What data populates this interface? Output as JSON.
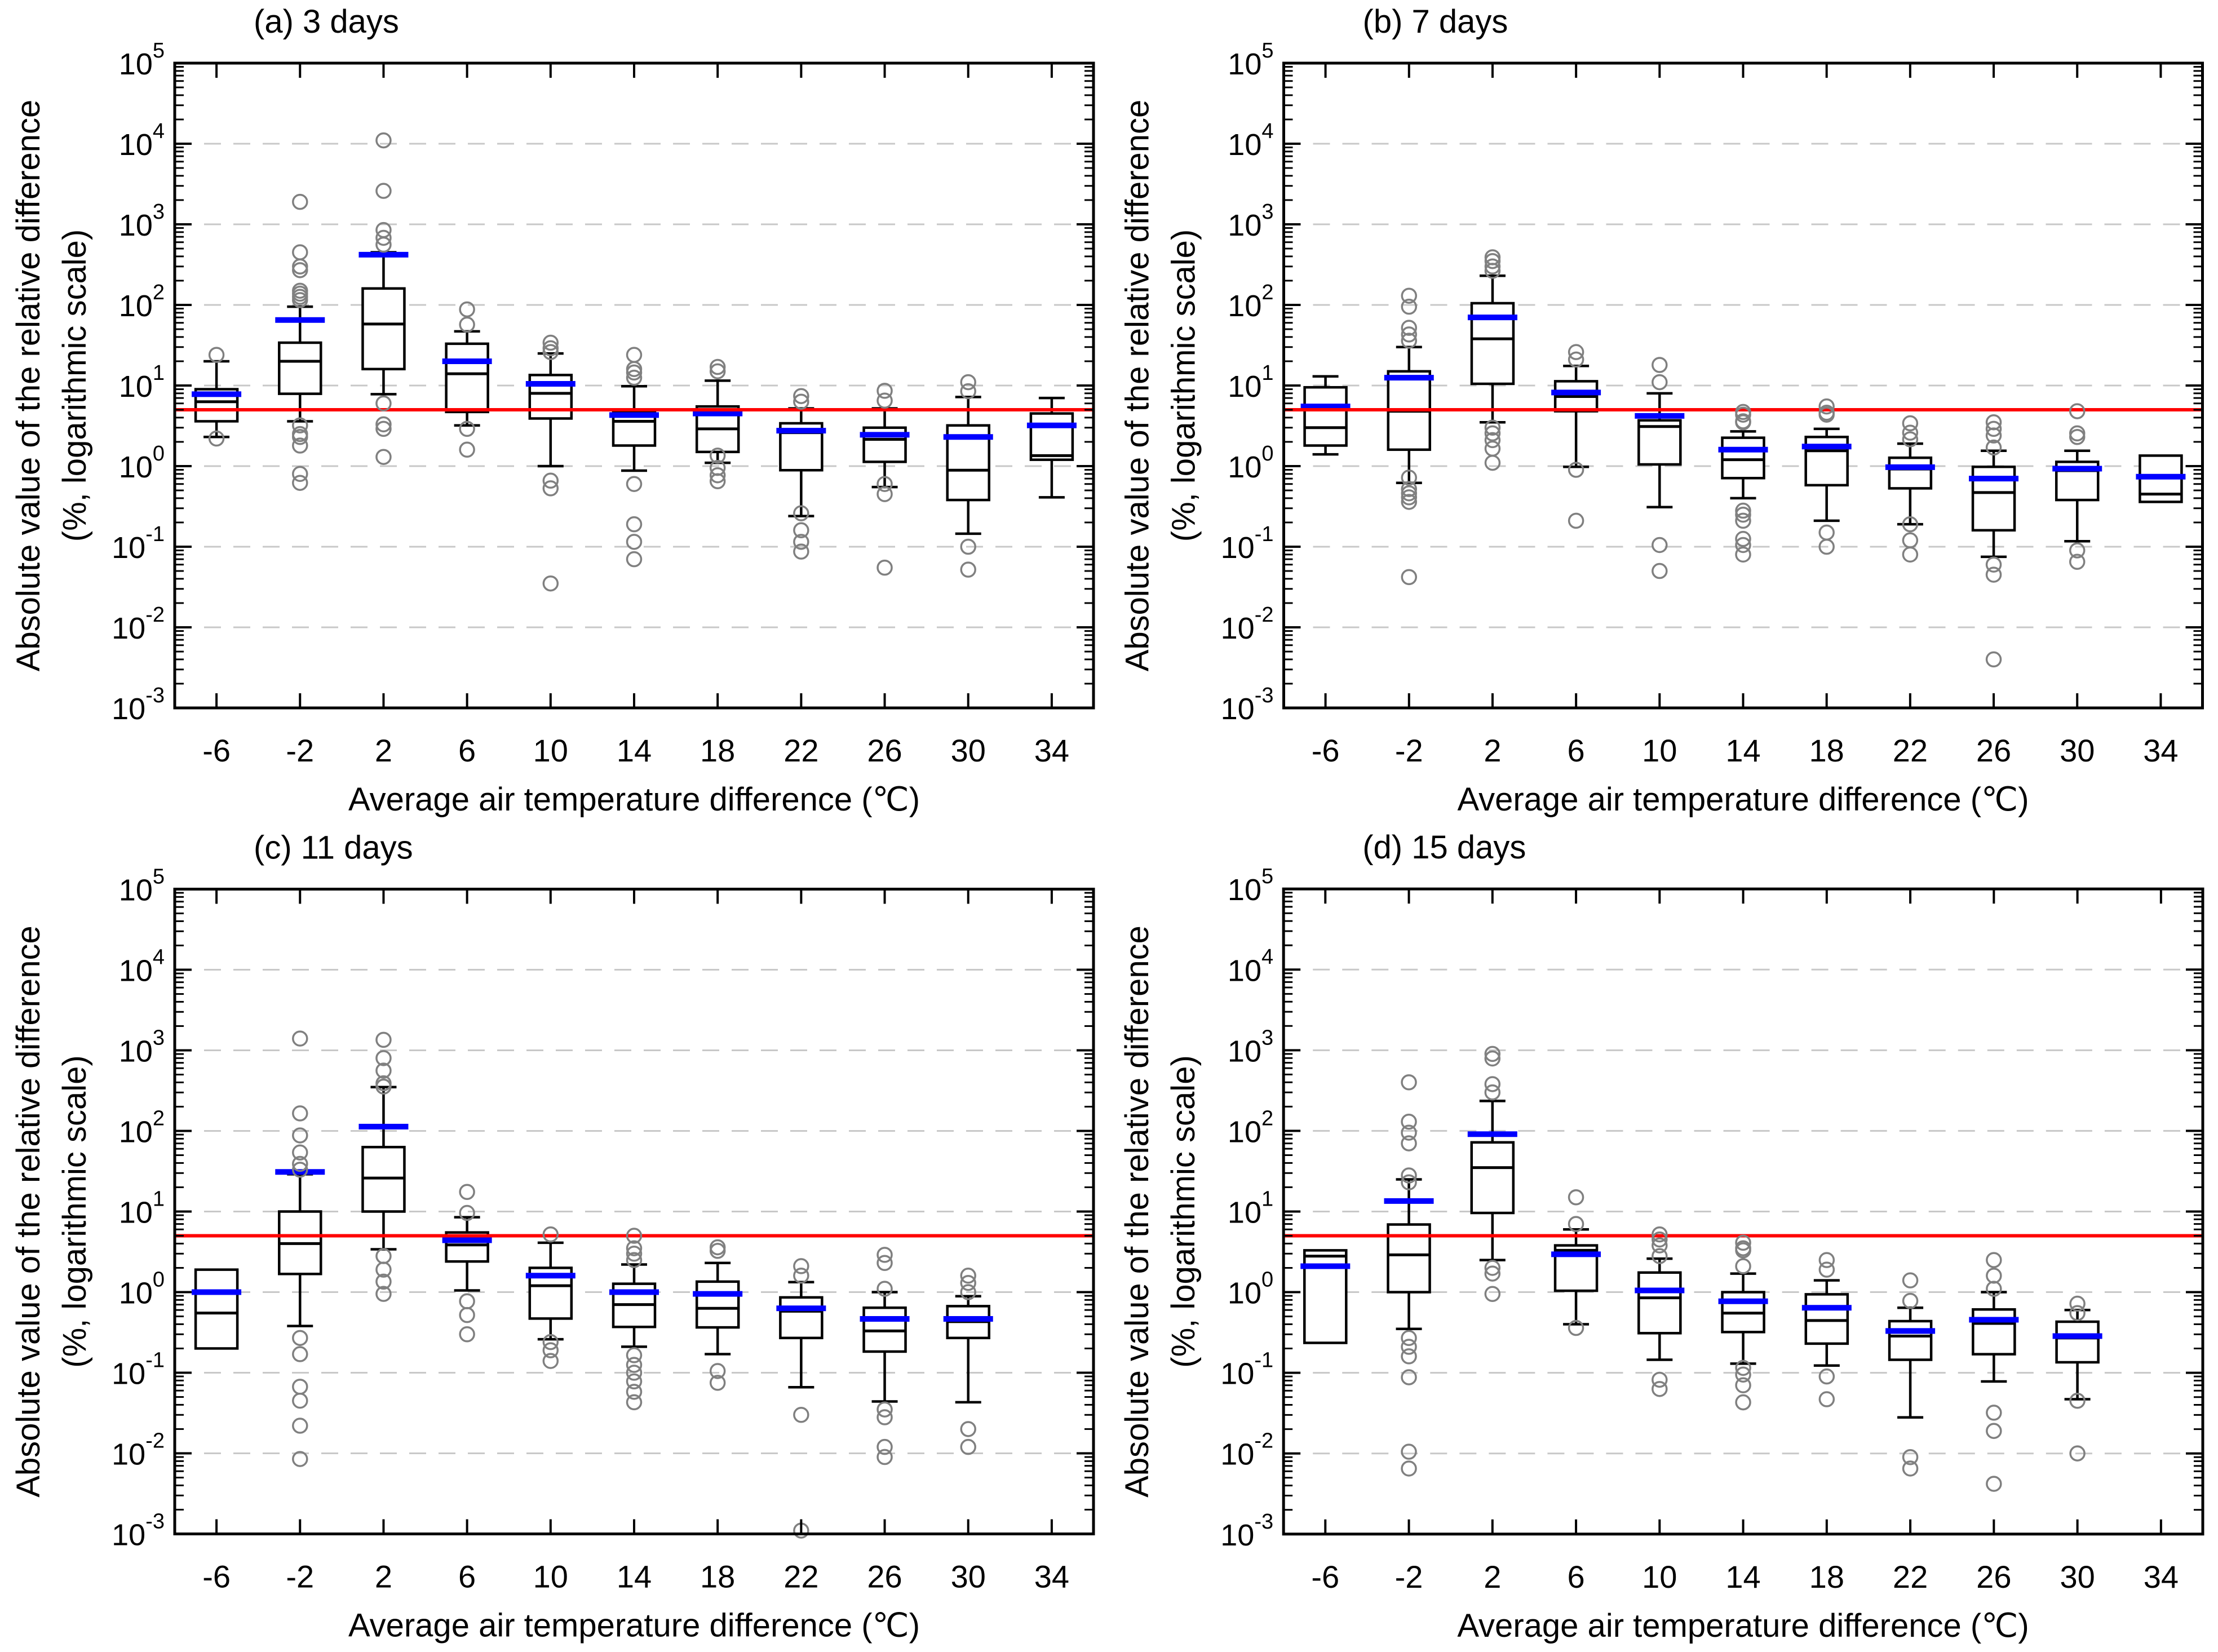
{
  "page": {
    "background": "#ffffff"
  },
  "style": {
    "axis_color": "#000000",
    "box_stroke_color": "#000000",
    "box_fill_color": "#ffffff",
    "median_color": "#000000",
    "mean_color": "#0000ff",
    "reference_line_color": "#ff0000",
    "outlier_color": "#808080",
    "grid_color": "#c8c8c8",
    "text_color": "#000000"
  },
  "chart_data": [
    {
      "type": "box",
      "label": "(a) 3 days",
      "xlabel": "Average air temperature difference (℃)",
      "ylabel_line1": "Absolute value of the relative difference",
      "ylabel_line2": "(%, logarithmic scale)",
      "x": [
        -6,
        -2,
        2,
        6,
        10,
        14,
        18,
        22,
        26,
        30,
        34
      ],
      "ylim": [
        0.001,
        100000
      ],
      "y_tick_exponents": [
        5,
        4,
        3,
        2,
        1,
        0,
        -1,
        -2,
        -3
      ],
      "grid": "dashed-horizontal-decades",
      "legend": "none",
      "reference_line_y": 5,
      "boxes": [
        {
          "q1": 3.6,
          "med": 6.3,
          "q3": 9,
          "mean": 7.8,
          "lo": 2.3,
          "hi": 20,
          "out": [
            24,
            2.2
          ]
        },
        {
          "q1": 7.9,
          "med": 20,
          "q3": 34,
          "mean": 65,
          "lo": 3.6,
          "hi": 95,
          "out": [
            1900,
            450,
            300,
            270,
            150,
            138,
            126,
            115,
            3.2,
            2.5,
            2.3,
            1.8,
            0.8,
            0.62
          ]
        },
        {
          "q1": 16,
          "med": 58,
          "q3": 160,
          "mean": 420,
          "lo": 7.8,
          "hi": 450,
          "out": [
            11000,
            2600,
            850,
            680,
            560,
            6,
            3.3,
            2.9,
            1.3
          ]
        },
        {
          "q1": 4.7,
          "med": 14,
          "q3": 33,
          "mean": 20,
          "lo": 3.2,
          "hi": 47,
          "out": [
            88,
            57,
            2.9,
            1.6
          ]
        },
        {
          "q1": 3.9,
          "med": 8,
          "q3": 13.5,
          "mean": 10.5,
          "lo": 1.0,
          "hi": 25,
          "out": [
            34,
            29,
            26,
            0.66,
            0.53,
            0.035
          ]
        },
        {
          "q1": 1.8,
          "med": 3.6,
          "q3": 4.6,
          "mean": 4.3,
          "lo": 0.88,
          "hi": 9.8,
          "out": [
            24,
            16,
            14.5,
            12.5,
            0.6,
            0.19,
            0.115,
            0.07
          ]
        },
        {
          "q1": 1.5,
          "med": 2.9,
          "q3": 5.5,
          "mean": 4.5,
          "lo": 1.1,
          "hi": 11.5,
          "out": [
            17,
            15,
            1.35,
            0.95,
            0.77,
            0.65
          ]
        },
        {
          "q1": 0.89,
          "med": 2.6,
          "q3": 3.4,
          "mean": 2.75,
          "lo": 0.24,
          "hi": 5.2,
          "out": [
            7.4,
            6.3,
            0.26,
            0.16,
            0.115,
            0.087
          ]
        },
        {
          "q1": 1.13,
          "med": 2.15,
          "q3": 3.0,
          "mean": 2.45,
          "lo": 0.55,
          "hi": 5.2,
          "out": [
            8.6,
            6.5,
            0.6,
            0.45,
            0.055
          ]
        },
        {
          "q1": 0.38,
          "med": 0.89,
          "q3": 3.2,
          "mean": 2.3,
          "lo": 0.145,
          "hi": 7.2,
          "out": [
            11,
            8.5,
            0.1,
            0.052
          ]
        },
        {
          "q1": 1.2,
          "med": 1.35,
          "q3": 4.5,
          "mean": 3.2,
          "lo": 0.41,
          "hi": 7,
          "out": []
        }
      ]
    },
    {
      "type": "box",
      "label": "(b) 7 days",
      "xlabel": "Average air temperature difference (℃)",
      "ylabel_line1": "Absolute value of the relative difference",
      "ylabel_line2": "(%, logarithmic scale)",
      "x": [
        -6,
        -2,
        2,
        6,
        10,
        14,
        18,
        22,
        26,
        30,
        34
      ],
      "ylim": [
        0.001,
        100000
      ],
      "y_tick_exponents": [
        5,
        4,
        3,
        2,
        1,
        0,
        -1,
        -2,
        -3
      ],
      "grid": "dashed-horizontal-decades",
      "legend": "none",
      "reference_line_y": 5,
      "boxes": [
        {
          "q1": 1.8,
          "med": 3.0,
          "q3": 9.5,
          "mean": 5.5,
          "lo": 1.4,
          "hi": 13,
          "out": []
        },
        {
          "q1": 1.6,
          "med": 4.8,
          "q3": 15,
          "mean": 12.5,
          "lo": 0.62,
          "hi": 30,
          "out": [
            130,
            95,
            52,
            43,
            36,
            0.72,
            0.52,
            0.46,
            0.41,
            0.36,
            0.042
          ]
        },
        {
          "q1": 10.5,
          "med": 38,
          "q3": 105,
          "mean": 70,
          "lo": 3.5,
          "hi": 230,
          "out": [
            390,
            350,
            300,
            265,
            3.0,
            2.55,
            2.1,
            1.65,
            1.1
          ]
        },
        {
          "q1": 4.8,
          "med": 7.3,
          "q3": 11.3,
          "mean": 8.2,
          "lo": 0.98,
          "hi": 17.5,
          "out": [
            26,
            21,
            0.9,
            0.21
          ]
        },
        {
          "q1": 1.05,
          "med": 3.1,
          "q3": 3.7,
          "mean": 4.2,
          "lo": 0.31,
          "hi": 8,
          "out": [
            18,
            11,
            0.105,
            0.05
          ]
        },
        {
          "q1": 0.71,
          "med": 1.2,
          "q3": 2.25,
          "mean": 1.6,
          "lo": 0.4,
          "hi": 2.7,
          "out": [
            4.7,
            4.35,
            3.6,
            3.5,
            0.28,
            0.25,
            0.21,
            0.125,
            0.105,
            0.08
          ]
        },
        {
          "q1": 0.58,
          "med": 1.55,
          "q3": 2.3,
          "mean": 1.75,
          "lo": 0.21,
          "hi": 2.9,
          "out": [
            5.5,
            4.6,
            4.35,
            0.15,
            0.1
          ]
        },
        {
          "q1": 0.53,
          "med": 0.92,
          "q3": 1.27,
          "mean": 0.97,
          "lo": 0.19,
          "hi": 1.9,
          "out": [
            3.4,
            2.6,
            2.15,
            0.19,
            0.12,
            0.08
          ]
        },
        {
          "q1": 0.16,
          "med": 0.47,
          "q3": 0.98,
          "mean": 0.7,
          "lo": 0.075,
          "hi": 1.55,
          "out": [
            3.5,
            2.9,
            2.4,
            1.7,
            0.06,
            0.045,
            0.004
          ]
        },
        {
          "q1": 0.38,
          "med": 0.88,
          "q3": 1.13,
          "mean": 0.93,
          "lo": 0.117,
          "hi": 1.55,
          "out": [
            4.8,
            2.55,
            2.3,
            0.09,
            0.065
          ]
        },
        {
          "q1": 0.36,
          "med": 0.45,
          "q3": 1.35,
          "mean": 0.74,
          "lo": null,
          "hi": null,
          "out": []
        }
      ]
    },
    {
      "type": "box",
      "label": "(c) 11 days",
      "xlabel": "Average air temperature difference (℃)",
      "ylabel_line1": "Absolute value of the relative difference",
      "ylabel_line2": "(%, logarithmic scale)",
      "x": [
        -6,
        -2,
        2,
        6,
        10,
        14,
        18,
        22,
        26,
        30,
        34
      ],
      "ylim": [
        0.001,
        100000
      ],
      "y_tick_exponents": [
        5,
        4,
        3,
        2,
        1,
        0,
        -1,
        -2,
        -3
      ],
      "grid": "dashed-horizontal-decades",
      "legend": "none",
      "reference_line_y": 5,
      "boxes": [
        {
          "q1": 0.2,
          "med": 0.55,
          "q3": 1.9,
          "mean": 1.0,
          "lo": null,
          "hi": null,
          "out": []
        },
        {
          "q1": 1.68,
          "med": 4.0,
          "q3": 10,
          "mean": 31,
          "lo": 0.38,
          "hi": 29,
          "out": [
            1400,
            165,
            88,
            54,
            39,
            33,
            0.27,
            0.17,
            0.067,
            0.045,
            0.022,
            0.0085
          ]
        },
        {
          "q1": 10,
          "med": 26,
          "q3": 63,
          "mean": 113,
          "lo": 3.4,
          "hi": 350,
          "out": [
            1350,
            800,
            560,
            390,
            355,
            2.8,
            1.9,
            1.35,
            0.95
          ]
        },
        {
          "q1": 2.4,
          "med": 3.85,
          "q3": 5.5,
          "mean": 4.4,
          "lo": 1.05,
          "hi": 8.5,
          "out": [
            17.5,
            9.6,
            0.77,
            0.52,
            0.3
          ]
        },
        {
          "q1": 0.47,
          "med": 1.2,
          "q3": 2.0,
          "mean": 1.6,
          "lo": 0.26,
          "hi": 4.1,
          "out": [
            5.2,
            0.24,
            0.19,
            0.14
          ]
        },
        {
          "q1": 0.37,
          "med": 0.7,
          "q3": 1.27,
          "mean": 1.0,
          "lo": 0.21,
          "hi": 2.2,
          "out": [
            5.0,
            3.5,
            3.0,
            2.5,
            0.165,
            0.125,
            0.1,
            0.078,
            0.058,
            0.043
          ]
        },
        {
          "q1": 0.365,
          "med": 0.63,
          "q3": 1.35,
          "mean": 0.95,
          "lo": 0.17,
          "hi": 2.3,
          "out": [
            3.6,
            3.25,
            0.105,
            0.075
          ]
        },
        {
          "q1": 0.27,
          "med": 0.58,
          "q3": 0.86,
          "mean": 0.63,
          "lo": 0.066,
          "hi": 1.33,
          "out": [
            2.1,
            1.6,
            0.03,
            0.0011
          ]
        },
        {
          "q1": 0.183,
          "med": 0.33,
          "q3": 0.64,
          "mean": 0.465,
          "lo": 0.044,
          "hi": 1.0,
          "out": [
            2.9,
            2.3,
            1.1,
            0.035,
            0.028,
            0.012,
            0.009
          ]
        },
        {
          "q1": 0.27,
          "med": 0.43,
          "q3": 0.67,
          "mean": 0.465,
          "lo": 0.043,
          "hi": 0.89,
          "out": [
            1.6,
            1.3,
            1.0,
            0.02,
            0.012
          ]
        },
        null
      ]
    },
    {
      "type": "box",
      "label": "(d) 15 days",
      "xlabel": "Average air temperature difference (℃)",
      "ylabel_line1": "Absolute value of the relative difference",
      "ylabel_line2": "(%, logarithmic scale)",
      "x": [
        -6,
        -2,
        2,
        6,
        10,
        14,
        18,
        22,
        26,
        30,
        34
      ],
      "ylim": [
        0.001,
        100000
      ],
      "y_tick_exponents": [
        5,
        4,
        3,
        2,
        1,
        0,
        -1,
        -2,
        -3
      ],
      "grid": "dashed-horizontal-decades",
      "legend": "none",
      "reference_line_y": 5,
      "boxes": [
        {
          "q1": 0.235,
          "med": 2.8,
          "q3": 3.3,
          "mean": 2.1,
          "lo": null,
          "hi": null,
          "out": []
        },
        {
          "q1": 1.0,
          "med": 2.9,
          "q3": 6.9,
          "mean": 13.5,
          "lo": 0.35,
          "hi": 25,
          "out": [
            400,
            130,
            95,
            70,
            28,
            23,
            0.27,
            0.21,
            0.16,
            0.088,
            0.0105,
            0.0065
          ]
        },
        {
          "q1": 9.6,
          "med": 35,
          "q3": 72,
          "mean": 91,
          "lo": 2.5,
          "hi": 235,
          "out": [
            900,
            790,
            380,
            300,
            2.0,
            1.7,
            0.95
          ]
        },
        {
          "q1": 1.04,
          "med": 3.3,
          "q3": 3.8,
          "mean": 2.95,
          "lo": 0.4,
          "hi": 6.0,
          "out": [
            15,
            7,
            0.36
          ]
        },
        {
          "q1": 0.31,
          "med": 0.85,
          "q3": 1.75,
          "mean": 1.05,
          "lo": 0.145,
          "hi": 2.6,
          "out": [
            5.2,
            4.5,
            3.8,
            2.8,
            0.082,
            0.063
          ]
        },
        {
          "q1": 0.32,
          "med": 0.55,
          "q3": 1.0,
          "mean": 0.77,
          "lo": 0.13,
          "hi": 1.7,
          "out": [
            4.1,
            3.5,
            3.3,
            2.1,
            0.115,
            0.095,
            0.07,
            0.043
          ]
        },
        {
          "q1": 0.23,
          "med": 0.445,
          "q3": 0.94,
          "mean": 0.64,
          "lo": 0.123,
          "hi": 1.4,
          "out": [
            2.5,
            1.9,
            0.09,
            0.047
          ]
        },
        {
          "q1": 0.145,
          "med": 0.285,
          "q3": 0.437,
          "mean": 0.33,
          "lo": 0.028,
          "hi": 0.64,
          "out": [
            1.4,
            0.78,
            0.009,
            0.0065
          ]
        },
        {
          "q1": 0.17,
          "med": 0.41,
          "q3": 0.61,
          "mean": 0.455,
          "lo": 0.078,
          "hi": 1.0,
          "out": [
            2.5,
            1.6,
            1.1,
            0.032,
            0.019,
            0.0042
          ]
        },
        {
          "q1": 0.135,
          "med": 0.27,
          "q3": 0.43,
          "mean": 0.285,
          "lo": 0.047,
          "hi": 0.6,
          "out": [
            0.72,
            0.55,
            0.045,
            0.01
          ]
        },
        null
      ]
    }
  ]
}
